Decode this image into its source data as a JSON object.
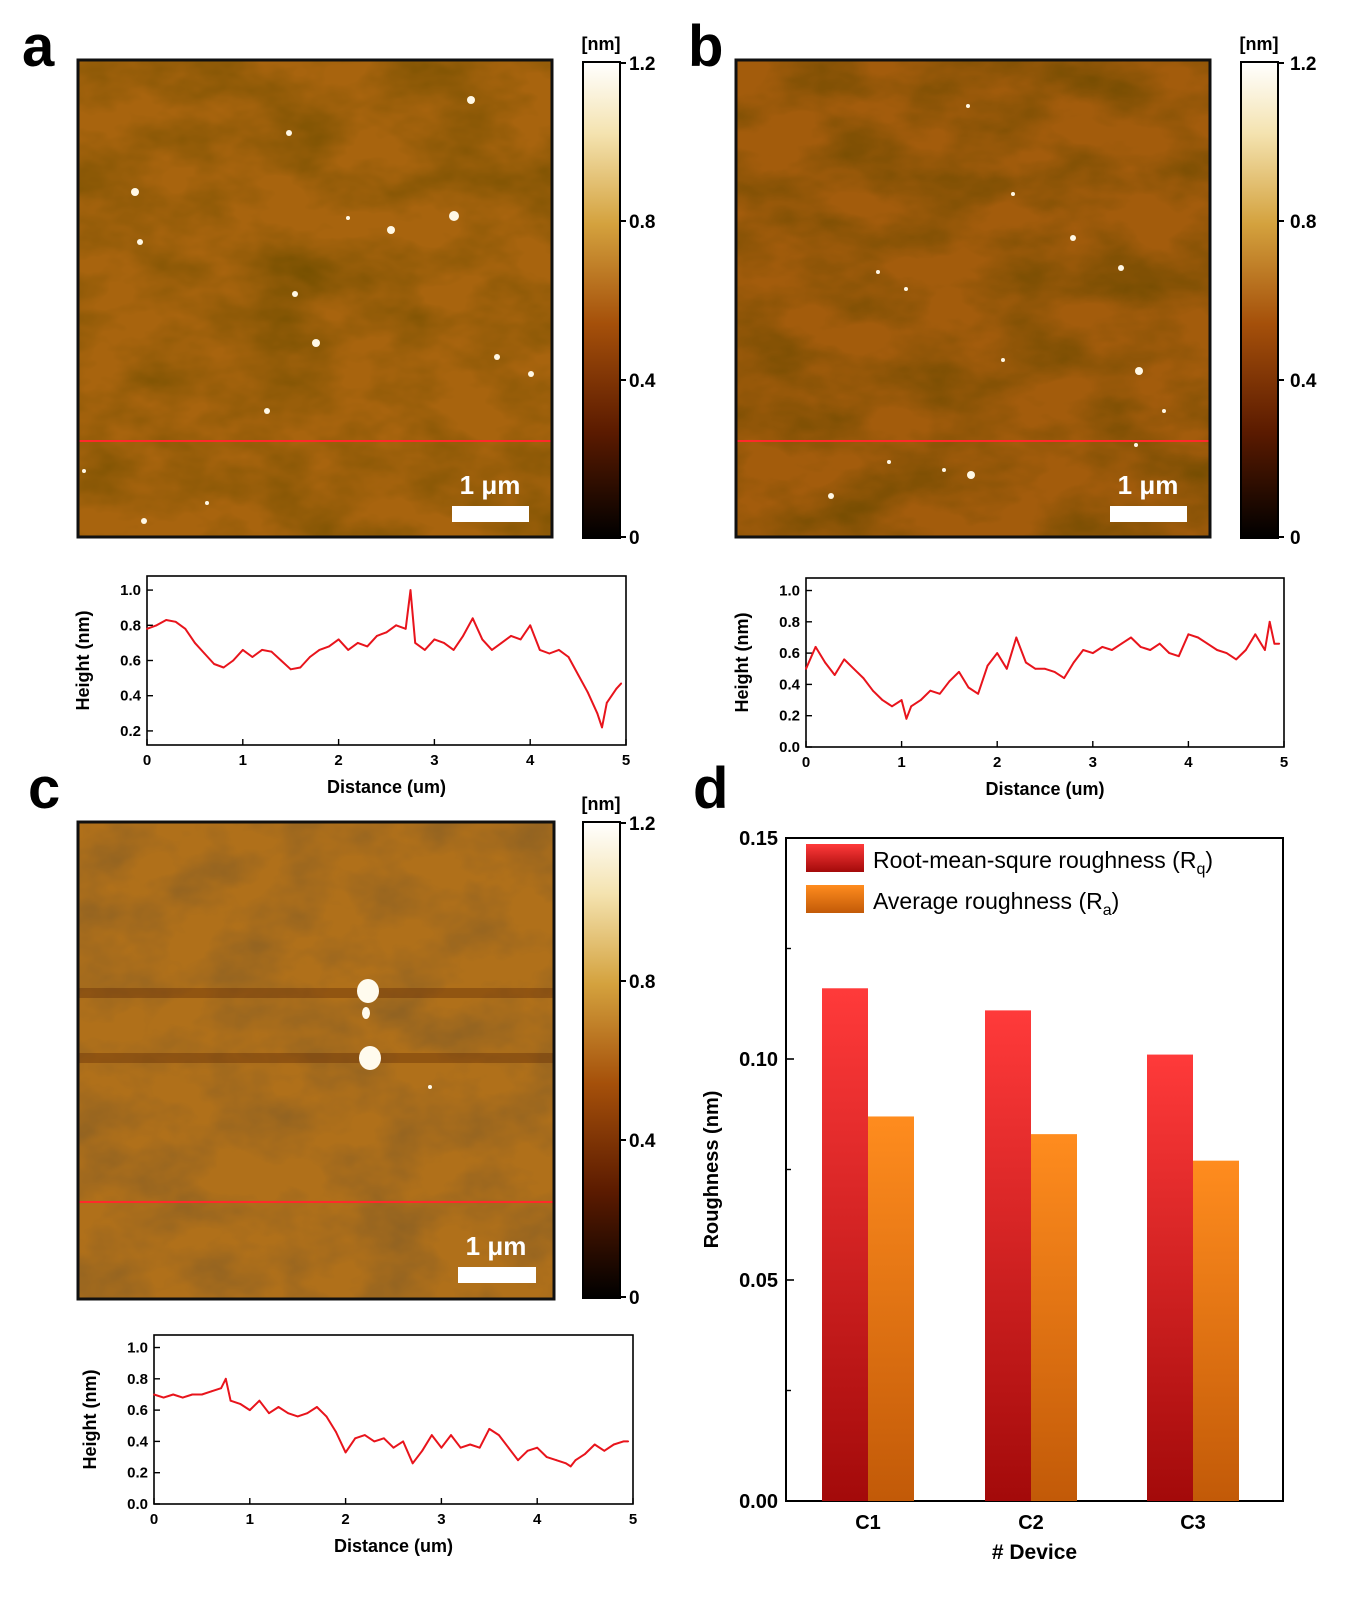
{
  "panel_labels": [
    "a",
    "b",
    "c",
    "d"
  ],
  "colorbar": {
    "unit_label": "[nm]",
    "ticks": [
      "1.2",
      "0.8",
      "0.4",
      "0"
    ],
    "colors": [
      "#000000",
      "#5a1a00",
      "#a5500a",
      "#d4a23e",
      "#f4e3b0",
      "#ffffff"
    ]
  },
  "afm_images": [
    {
      "panel": "a",
      "scale_bar_label": "1 μm",
      "base_color": "#a8640e",
      "line_color": "#ff2a2a"
    },
    {
      "panel": "b",
      "scale_bar_label": "1 μm",
      "base_color": "#a35c0c",
      "line_color": "#ff2a2a"
    },
    {
      "panel": "c",
      "scale_bar_label": "1 μm",
      "base_color": "#b0701a",
      "line_color": "#ff2a2a"
    }
  ],
  "chart_data": [
    {
      "panel": "a",
      "type": "line",
      "title": "",
      "xlabel": "Distance (um)",
      "ylabel": "Height (nm)",
      "xlim": [
        0,
        5
      ],
      "ylim": [
        0.12,
        1.08
      ],
      "x_ticks": [
        "0",
        "1",
        "2",
        "3",
        "4",
        "5"
      ],
      "y_ticks": [
        "0.2",
        "0.4",
        "0.6",
        "0.8",
        "1.0"
      ],
      "line_color": "#e8141c",
      "series": [
        {
          "name": "profile",
          "x": [
            0,
            0.1,
            0.2,
            0.3,
            0.4,
            0.5,
            0.6,
            0.7,
            0.8,
            0.9,
            1.0,
            1.1,
            1.2,
            1.3,
            1.4,
            1.5,
            1.6,
            1.7,
            1.8,
            1.9,
            2.0,
            2.1,
            2.2,
            2.3,
            2.4,
            2.5,
            2.6,
            2.7,
            2.75,
            2.8,
            2.9,
            3.0,
            3.1,
            3.2,
            3.3,
            3.4,
            3.5,
            3.6,
            3.7,
            3.8,
            3.9,
            4.0,
            4.1,
            4.2,
            4.3,
            4.4,
            4.5,
            4.6,
            4.7,
            4.75,
            4.8,
            4.9,
            4.95
          ],
          "values": [
            0.78,
            0.8,
            0.83,
            0.82,
            0.78,
            0.7,
            0.64,
            0.58,
            0.56,
            0.6,
            0.66,
            0.62,
            0.66,
            0.65,
            0.6,
            0.55,
            0.56,
            0.62,
            0.66,
            0.68,
            0.72,
            0.66,
            0.7,
            0.68,
            0.74,
            0.76,
            0.8,
            0.78,
            1.0,
            0.7,
            0.66,
            0.72,
            0.7,
            0.66,
            0.74,
            0.84,
            0.72,
            0.66,
            0.7,
            0.74,
            0.72,
            0.8,
            0.66,
            0.64,
            0.66,
            0.62,
            0.52,
            0.42,
            0.3,
            0.22,
            0.36,
            0.44,
            0.47
          ]
        }
      ]
    },
    {
      "panel": "b",
      "type": "line",
      "title": "",
      "xlabel": "Distance (um)",
      "ylabel": "Height (nm)",
      "xlim": [
        0,
        5
      ],
      "ylim": [
        0,
        1.08
      ],
      "x_ticks": [
        "0",
        "1",
        "2",
        "3",
        "4",
        "5"
      ],
      "y_ticks": [
        "0.0",
        "0.2",
        "0.4",
        "0.6",
        "0.8",
        "1.0"
      ],
      "line_color": "#e8141c",
      "series": [
        {
          "name": "profile",
          "x": [
            0,
            0.1,
            0.2,
            0.3,
            0.4,
            0.5,
            0.6,
            0.7,
            0.8,
            0.9,
            1.0,
            1.05,
            1.1,
            1.2,
            1.3,
            1.4,
            1.5,
            1.6,
            1.7,
            1.8,
            1.9,
            2.0,
            2.1,
            2.2,
            2.3,
            2.4,
            2.5,
            2.6,
            2.7,
            2.8,
            2.9,
            3.0,
            3.1,
            3.2,
            3.3,
            3.4,
            3.5,
            3.6,
            3.7,
            3.8,
            3.9,
            4.0,
            4.1,
            4.2,
            4.3,
            4.4,
            4.5,
            4.6,
            4.7,
            4.8,
            4.85,
            4.9,
            4.95
          ],
          "values": [
            0.5,
            0.64,
            0.54,
            0.46,
            0.56,
            0.5,
            0.44,
            0.36,
            0.3,
            0.26,
            0.3,
            0.18,
            0.26,
            0.3,
            0.36,
            0.34,
            0.42,
            0.48,
            0.38,
            0.34,
            0.52,
            0.6,
            0.5,
            0.7,
            0.54,
            0.5,
            0.5,
            0.48,
            0.44,
            0.54,
            0.62,
            0.6,
            0.64,
            0.62,
            0.66,
            0.7,
            0.64,
            0.62,
            0.66,
            0.6,
            0.58,
            0.72,
            0.7,
            0.66,
            0.62,
            0.6,
            0.56,
            0.62,
            0.72,
            0.62,
            0.8,
            0.66,
            0.66
          ]
        }
      ]
    },
    {
      "panel": "c",
      "type": "line",
      "title": "",
      "xlabel": "Distance (um)",
      "ylabel": "Height (nm)",
      "xlim": [
        0,
        5
      ],
      "ylim": [
        0,
        1.08
      ],
      "x_ticks": [
        "0",
        "1",
        "2",
        "3",
        "4",
        "5"
      ],
      "y_ticks": [
        "0.0",
        "0.2",
        "0.4",
        "0.6",
        "0.8",
        "1.0"
      ],
      "line_color": "#e8141c",
      "series": [
        {
          "name": "profile",
          "x": [
            0,
            0.1,
            0.2,
            0.3,
            0.4,
            0.5,
            0.6,
            0.7,
            0.75,
            0.8,
            0.9,
            1.0,
            1.1,
            1.2,
            1.3,
            1.4,
            1.5,
            1.6,
            1.7,
            1.8,
            1.9,
            2.0,
            2.1,
            2.2,
            2.3,
            2.4,
            2.5,
            2.6,
            2.7,
            2.8,
            2.9,
            3.0,
            3.1,
            3.2,
            3.3,
            3.4,
            3.5,
            3.6,
            3.7,
            3.8,
            3.9,
            4.0,
            4.1,
            4.2,
            4.3,
            4.35,
            4.4,
            4.5,
            4.6,
            4.7,
            4.8,
            4.9,
            4.95
          ],
          "values": [
            0.7,
            0.68,
            0.7,
            0.68,
            0.7,
            0.7,
            0.72,
            0.74,
            0.8,
            0.66,
            0.64,
            0.6,
            0.66,
            0.58,
            0.62,
            0.58,
            0.56,
            0.58,
            0.62,
            0.56,
            0.46,
            0.33,
            0.42,
            0.44,
            0.4,
            0.42,
            0.36,
            0.4,
            0.26,
            0.34,
            0.44,
            0.36,
            0.44,
            0.36,
            0.38,
            0.36,
            0.48,
            0.44,
            0.36,
            0.28,
            0.34,
            0.36,
            0.3,
            0.28,
            0.26,
            0.24,
            0.28,
            0.32,
            0.38,
            0.34,
            0.38,
            0.4,
            0.4
          ]
        }
      ]
    },
    {
      "panel": "d",
      "type": "bar",
      "title": "",
      "xlabel": "# Device",
      "ylabel": "Roughness (nm)",
      "ylim": [
        0,
        0.15
      ],
      "categories": [
        "C1",
        "C2",
        "C3"
      ],
      "y_ticks": [
        "0.00",
        "0.05",
        "0.10",
        "0.15"
      ],
      "legend_position": "top",
      "series": [
        {
          "name": "Root-mean-squre roughness (Rq)",
          "legend_text": "Root-mean-squre roughness (R",
          "legend_sub": "q",
          "values": [
            0.116,
            0.111,
            0.101
          ],
          "color_top": "#ff3a3a",
          "color_bottom": "#a30a0a"
        },
        {
          "name": "Average roughness (Ra)",
          "legend_text": "Average roughness (R",
          "legend_sub": "a",
          "values": [
            0.087,
            0.083,
            0.077
          ],
          "color_top": "#ff8c1e",
          "color_bottom": "#c25a08"
        }
      ]
    }
  ]
}
